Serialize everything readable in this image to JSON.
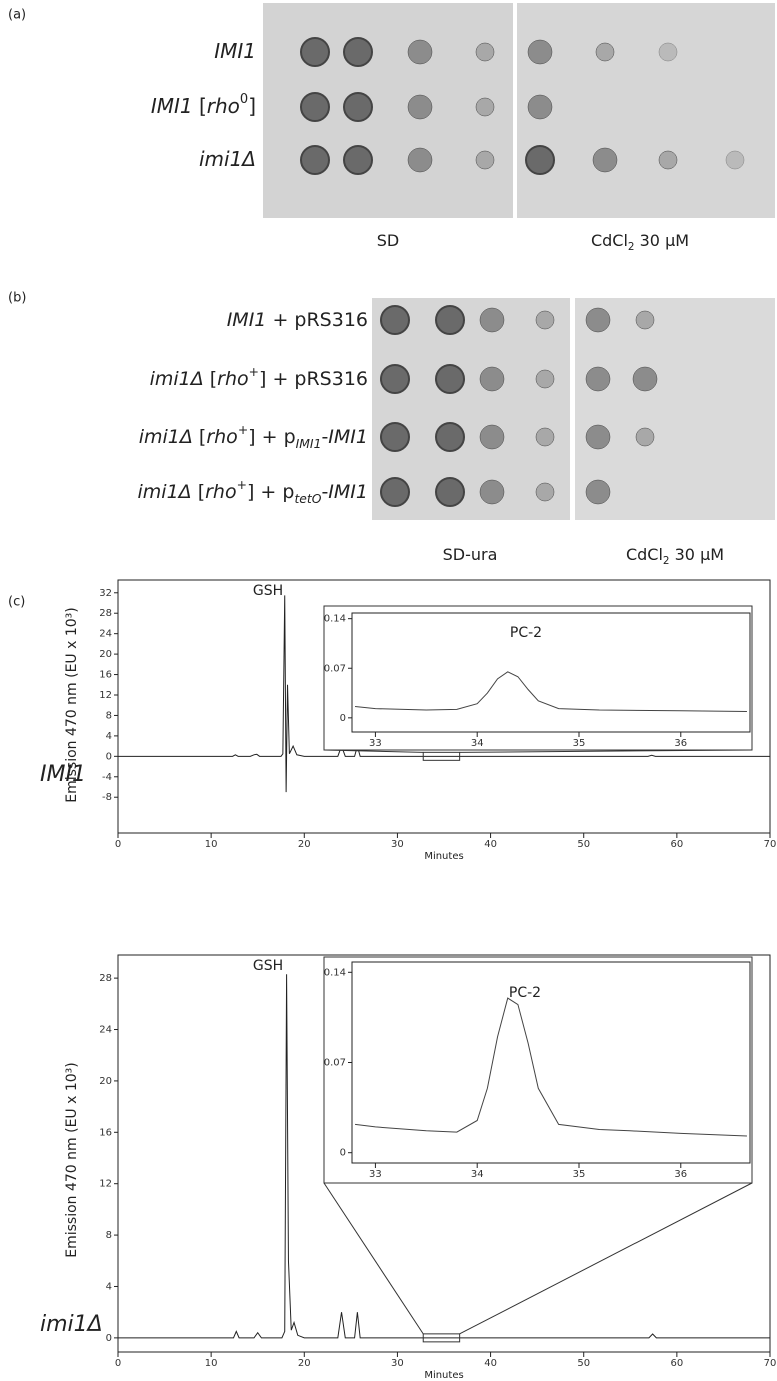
{
  "figure": {
    "panel_labels": [
      "(a)",
      "(b)",
      "(c)"
    ],
    "panel_a": {
      "strains": [
        [
          {
            "text": "IMI1",
            "style": "italic"
          }
        ],
        [
          {
            "text": "IMI1",
            "style": "italic"
          },
          {
            "text": " ["
          },
          {
            "text": "rho",
            "style": "italic"
          },
          {
            "text": "0",
            "style": "sup"
          },
          {
            "text": "]"
          }
        ],
        [
          {
            "text": "imi1Δ",
            "style": "italic"
          }
        ]
      ],
      "media": [
        [
          {
            "text": "SD"
          }
        ],
        [
          {
            "text": "CdCl"
          },
          {
            "text": "2",
            "style": "sub"
          },
          {
            "text": " 30 μM"
          }
        ]
      ]
    },
    "panel_b": {
      "strains": [
        [
          {
            "text": "IMI1",
            "style": "italic"
          },
          {
            "text": " + pRS316"
          }
        ],
        [
          {
            "text": "imi1Δ",
            "style": "italic"
          },
          {
            "text": " ["
          },
          {
            "text": "rho",
            "style": "italic"
          },
          {
            "text": "+",
            "style": "sup"
          },
          {
            "text": "] + pRS316"
          }
        ],
        [
          {
            "text": "imi1Δ",
            "style": "italic"
          },
          {
            "text": " ["
          },
          {
            "text": "rho",
            "style": "italic"
          },
          {
            "text": "+",
            "style": "sup"
          },
          {
            "text": "] + p"
          },
          {
            "text": "IMI1",
            "style": "sub-italic"
          },
          {
            "text": "-"
          },
          {
            "text": "IMI1",
            "style": "italic"
          }
        ],
        [
          {
            "text": "imi1Δ",
            "style": "italic"
          },
          {
            "text": " ["
          },
          {
            "text": "rho",
            "style": "italic"
          },
          {
            "text": "+",
            "style": "sup"
          },
          {
            "text": "] + p"
          },
          {
            "text": "tetO",
            "style": "sub-italic"
          },
          {
            "text": "-"
          },
          {
            "text": "IMI1",
            "style": "italic"
          }
        ]
      ],
      "media": [
        [
          {
            "text": "SD-ura"
          }
        ],
        [
          {
            "text": "CdCl"
          },
          {
            "text": "2",
            "style": "sub"
          },
          {
            "text": " 30 μM"
          }
        ]
      ]
    },
    "strain_labels_c": [
      "IMI1",
      "imi1Δ"
    ]
  },
  "chart_data": [
    {
      "type": "line",
      "x_label": "Minutes",
      "y_label": "Emission  470 nm (EU x 10³)",
      "annotation": "GSH",
      "color": "#222222",
      "xlim": [
        0,
        70
      ],
      "xticks": [
        0,
        10,
        20,
        30,
        40,
        50,
        60,
        70
      ],
      "ylim": [
        -15,
        34.5
      ],
      "yticks": [
        -8,
        -4,
        0,
        4,
        8,
        12,
        16,
        20,
        24,
        28,
        32
      ],
      "x": [
        0,
        10,
        12.3,
        12.6,
        12.9,
        14.2,
        14.6,
        14.9,
        15.2,
        17.5,
        17.7,
        17.9,
        18.05,
        18.2,
        18.4,
        18.8,
        19.2,
        20,
        23.6,
        24,
        24.4,
        25.4,
        25.7,
        26,
        30,
        40,
        56.9,
        57.3,
        57.7,
        70
      ],
      "values": [
        0,
        0,
        0,
        0.3,
        0,
        0,
        0.3,
        0.4,
        0,
        0,
        0.5,
        31.5,
        -7,
        14,
        0.5,
        2,
        0.3,
        0,
        0,
        2,
        0,
        0,
        2,
        0,
        0,
        0,
        0,
        0.2,
        0,
        0
      ]
    },
    {
      "type": "line",
      "annotation": "PC-2",
      "color": "#444444",
      "xlim": [
        32.77,
        36.68
      ],
      "xticks": [
        33,
        34,
        35,
        36
      ],
      "ylim": [
        -0.02,
        0.148
      ],
      "yticks": [
        0,
        0.07,
        0.14
      ],
      "x": [
        32.8,
        33,
        33.5,
        33.8,
        34,
        34.1,
        34.2,
        34.3,
        34.4,
        34.5,
        34.6,
        34.8,
        35.2,
        36,
        36.65
      ],
      "values": [
        0.016,
        0.013,
        0.011,
        0.012,
        0.02,
        0.035,
        0.055,
        0.065,
        0.058,
        0.04,
        0.024,
        0.013,
        0.011,
        0.01,
        0.009
      ]
    },
    {
      "type": "line",
      "x_label": "Minutes",
      "y_label": "Emission  470 nm (EU x 10³)",
      "annotation": "GSH",
      "color": "#222222",
      "xlim": [
        0,
        70
      ],
      "xticks": [
        0,
        10,
        20,
        30,
        40,
        50,
        60,
        70
      ],
      "ylim": [
        -1.1,
        29.8
      ],
      "yticks": [
        0,
        4,
        8,
        12,
        16,
        20,
        24,
        28
      ],
      "x": [
        0,
        10,
        12.4,
        12.7,
        13,
        14.6,
        15,
        15.4,
        17.6,
        17.9,
        18.1,
        18.3,
        18.6,
        18.9,
        19.3,
        20,
        23.6,
        24,
        24.4,
        25.4,
        25.7,
        26,
        30,
        40,
        57,
        57.4,
        57.8,
        70
      ],
      "values": [
        0,
        0,
        0,
        0.5,
        0,
        0,
        0.4,
        0,
        0,
        0.5,
        28.3,
        6,
        0.6,
        1.2,
        0.2,
        0,
        0,
        2,
        0,
        0,
        2,
        0,
        0,
        0,
        0,
        0.3,
        0,
        0
      ]
    },
    {
      "type": "line",
      "annotation": "PC-2",
      "color": "#444444",
      "xlim": [
        32.77,
        36.68
      ],
      "xticks": [
        33,
        34,
        35,
        36
      ],
      "ylim": [
        -0.008,
        0.148
      ],
      "yticks": [
        0,
        0.07,
        0.14
      ],
      "x": [
        32.8,
        33,
        33.5,
        33.8,
        34,
        34.1,
        34.2,
        34.3,
        34.4,
        34.5,
        34.6,
        34.8,
        35.2,
        35.5,
        36,
        36.65
      ],
      "values": [
        0.022,
        0.02,
        0.017,
        0.016,
        0.025,
        0.05,
        0.09,
        0.12,
        0.115,
        0.085,
        0.05,
        0.022,
        0.018,
        0.017,
        0.015,
        0.013
      ]
    }
  ]
}
